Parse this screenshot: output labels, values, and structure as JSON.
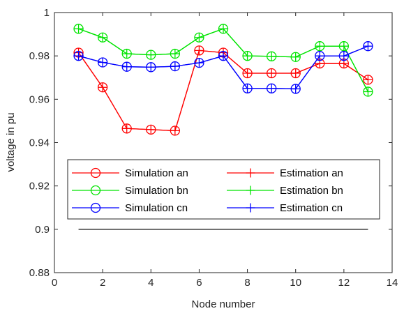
{
  "chart_data": {
    "type": "line",
    "xlabel": "Node number",
    "ylabel": "voltage in pu",
    "xlim": [
      0,
      14
    ],
    "ylim": [
      0.88,
      1.0
    ],
    "x_ticks": [
      0,
      2,
      4,
      6,
      8,
      10,
      12,
      14
    ],
    "y_ticks": [
      0.88,
      0.9,
      0.92,
      0.94,
      0.96,
      0.98,
      1.0
    ],
    "x_tick_labels": [
      "0",
      "2",
      "4",
      "6",
      "8",
      "10",
      "12",
      "14"
    ],
    "y_tick_labels": [
      "0.88",
      "0.9",
      "0.92",
      "0.94",
      "0.96",
      "0.98",
      "1"
    ],
    "x": [
      1,
      2,
      3,
      4,
      5,
      6,
      7,
      8,
      9,
      10,
      11,
      12,
      13
    ],
    "grid": false,
    "legend_position": "lower-center",
    "series": [
      {
        "name": "Simulation an",
        "color": "#ff0000",
        "marker": "circle",
        "values": [
          0.9815,
          0.9655,
          0.9465,
          0.946,
          0.9455,
          0.9825,
          0.9815,
          0.972,
          0.972,
          0.972,
          0.9765,
          0.9765,
          0.969
        ]
      },
      {
        "name": "Estimation an",
        "color": "#ff0000",
        "marker": "plus",
        "values": [
          0.9815,
          0.9655,
          0.9465,
          0.946,
          0.9455,
          0.9825,
          0.9815,
          0.972,
          0.972,
          0.972,
          0.9765,
          0.9765,
          0.969
        ]
      },
      {
        "name": "Simulation bn",
        "color": "#00e400",
        "marker": "circle",
        "values": [
          0.9925,
          0.9885,
          0.981,
          0.9805,
          0.981,
          0.9885,
          0.9925,
          0.98,
          0.9798,
          0.9795,
          0.9845,
          0.9845,
          0.9635
        ]
      },
      {
        "name": "Estimation bn",
        "color": "#00e400",
        "marker": "plus",
        "values": [
          0.9925,
          0.9885,
          0.981,
          0.9805,
          0.981,
          0.9885,
          0.9925,
          0.98,
          0.9798,
          0.9795,
          0.9845,
          0.9845,
          0.9635
        ]
      },
      {
        "name": "Simulation cn",
        "color": "#0000ff",
        "marker": "circle",
        "values": [
          0.98,
          0.977,
          0.975,
          0.9748,
          0.9752,
          0.9768,
          0.98,
          0.965,
          0.965,
          0.9648,
          0.98,
          0.98,
          0.9845
        ]
      },
      {
        "name": "Estimation cn",
        "color": "#0000ff",
        "marker": "plus",
        "values": [
          0.98,
          0.977,
          0.975,
          0.9748,
          0.9752,
          0.9768,
          0.98,
          0.965,
          0.965,
          0.9648,
          0.98,
          0.98,
          0.9845
        ]
      }
    ],
    "reference_line": {
      "x": [
        1,
        13
      ],
      "y": 0.9,
      "color": "#222222"
    }
  }
}
